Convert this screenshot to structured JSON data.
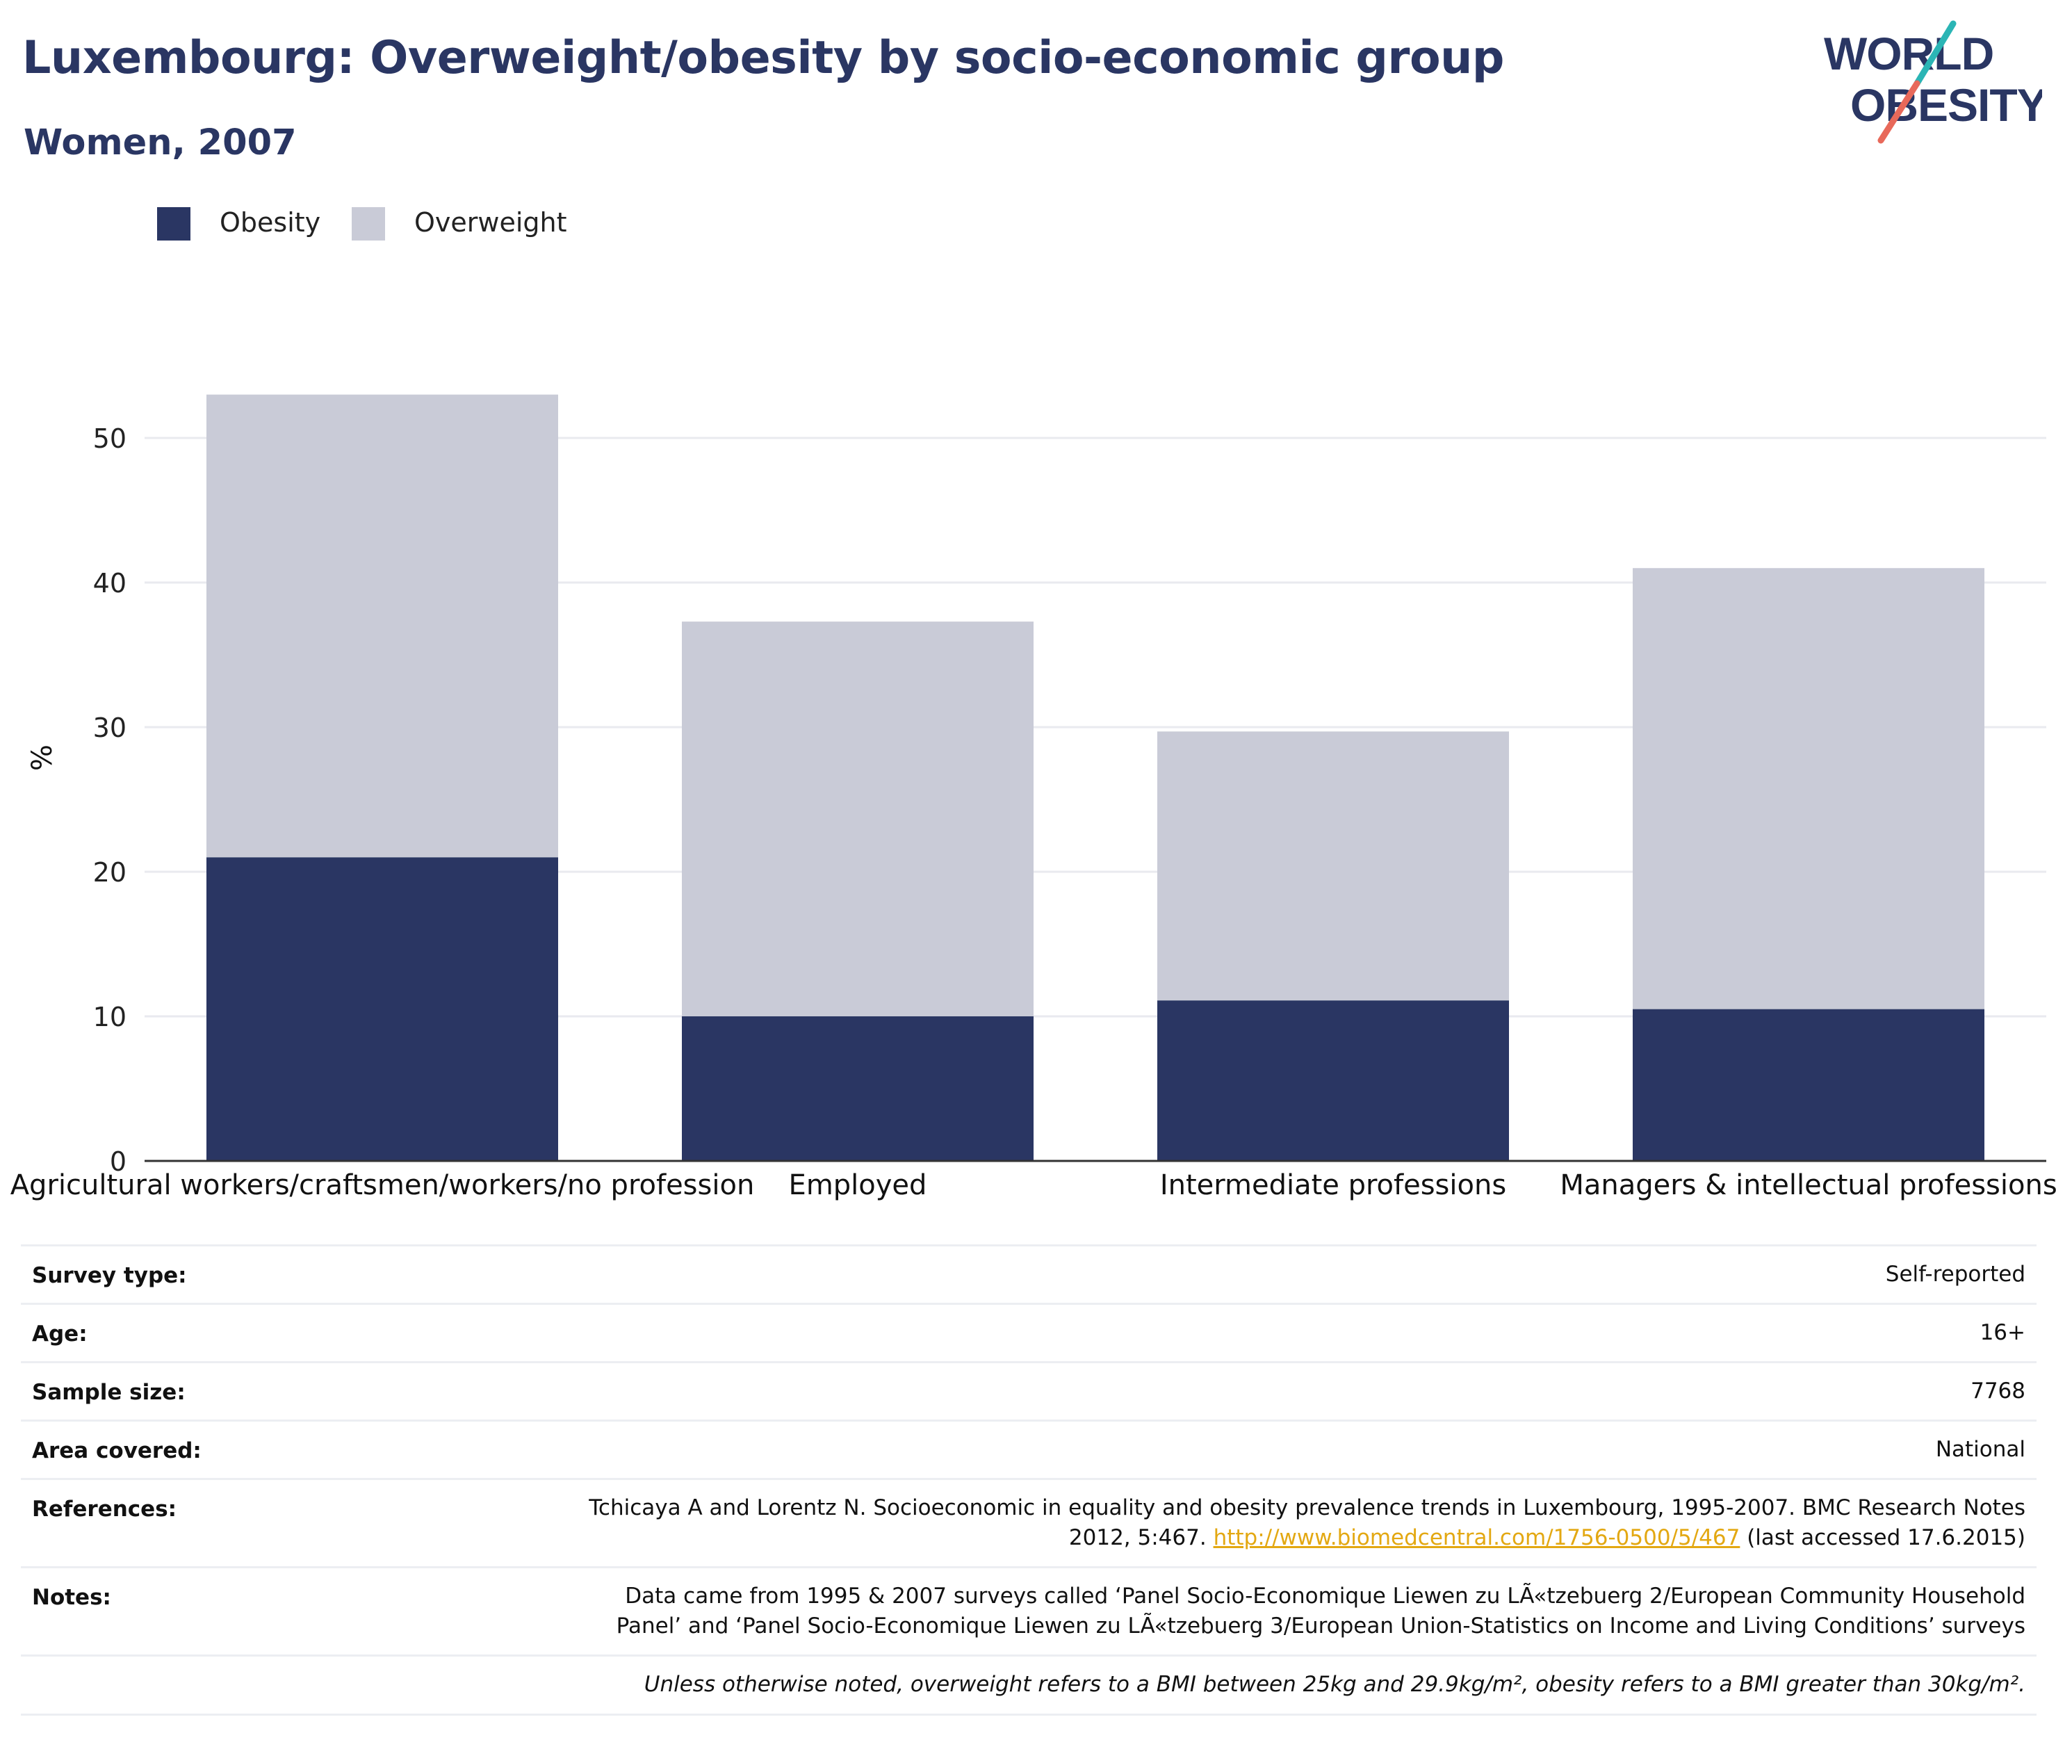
{
  "title": "Luxembourg: Overweight/obesity by socio-economic group",
  "subtitle": "Women, 2007",
  "logo": {
    "line1": "WORLD",
    "line2": "OBESITY"
  },
  "legend": [
    {
      "label": "Obesity",
      "color": "#2a3663"
    },
    {
      "label": "Overweight",
      "color": "#c9cbd7"
    }
  ],
  "chart_data": {
    "type": "bar",
    "stacked": true,
    "categories": [
      "Agricultural workers/craftsmen/workers/no profession",
      "Employed",
      "Intermediate professions",
      "Managers & intellectual professions"
    ],
    "series": [
      {
        "name": "Obesity",
        "color": "#2a3663",
        "values": [
          21.0,
          10.0,
          11.1,
          10.5
        ]
      },
      {
        "name": "Overweight",
        "color": "#c9cbd7",
        "values": [
          32.0,
          27.3,
          18.6,
          30.5
        ]
      }
    ],
    "ylabel": "%",
    "ylim": [
      0,
      55
    ],
    "yticks": [
      0,
      10,
      20,
      30,
      40,
      50
    ],
    "grid": true,
    "legend_position": "top-left"
  },
  "info": {
    "survey_type": {
      "label": "Survey type:",
      "value": "Self-reported"
    },
    "age": {
      "label": "Age:",
      "value": "16+"
    },
    "sample_size": {
      "label": "Sample size:",
      "value": "7768"
    },
    "area_covered": {
      "label": "Area covered:",
      "value": "National"
    },
    "references": {
      "label": "References:",
      "text_line1": "Tchicaya A and Lorentz N. Socioeconomic in equality and obesity prevalence trends in Luxembourg, 1995-2007. BMC Research Notes",
      "text_line2_before": "2012, 5:467.",
      "link": "http://www.biomedcentral.com/1756-0500/5/467",
      "text_line2_after": "(last accessed 17.6.2015)"
    },
    "notes": {
      "label": "Notes:",
      "line1": "Data came from 1995 & 2007 surveys called ‘Panel Socio-Economique Liewen zu LÃ«tzebuerg 2/European Community Household",
      "line2": "Panel’ and ‘Panel Socio-Economique Liewen zu LÃ«tzebuerg 3/European Union-Statistics on Income and Living Conditions’ surveys"
    },
    "footnote": "Unless otherwise noted, overweight refers to a BMI between 25kg and 29.9kg/m², obesity refers to a BMI greater than 30kg/m²."
  }
}
